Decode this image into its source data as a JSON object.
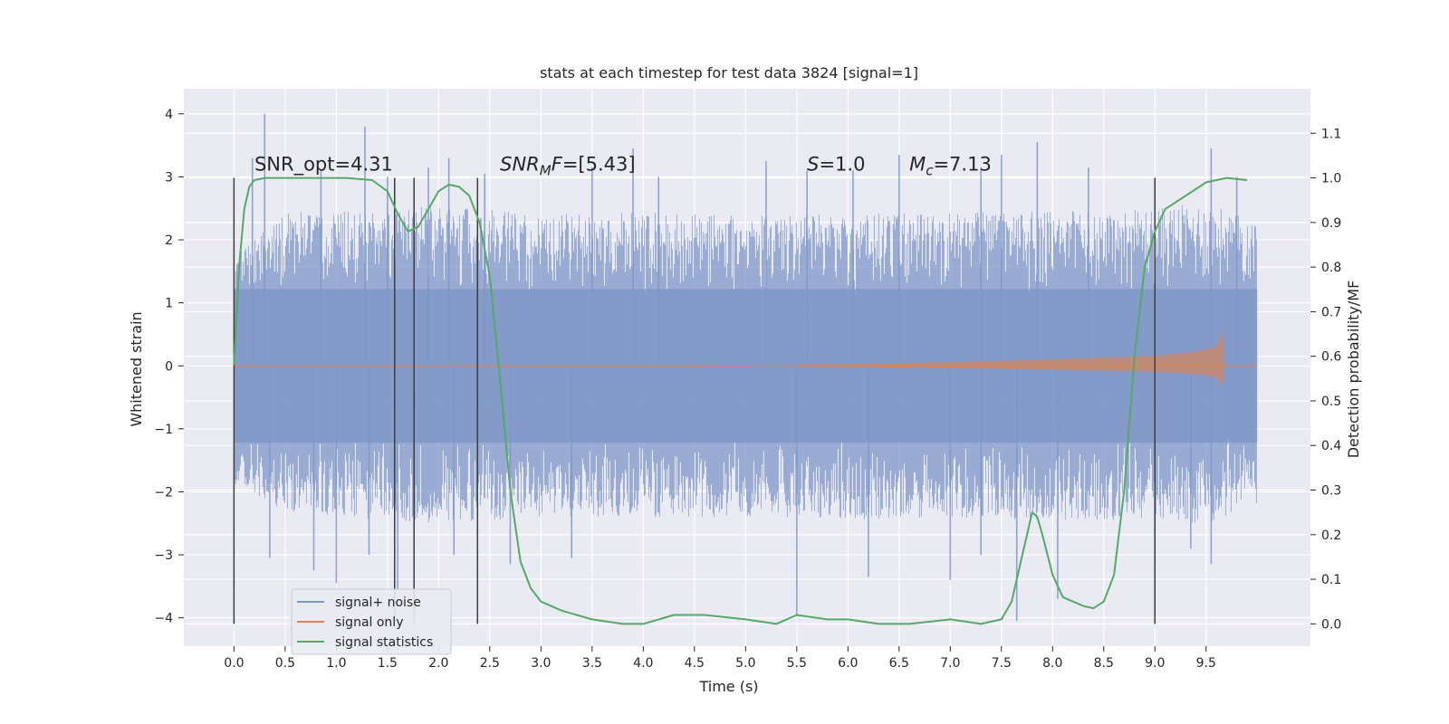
{
  "chart_data": {
    "type": "line",
    "title": "stats at each timestep for test data 3824 [signal=1]",
    "xlabel": "Time (s)",
    "ylabel": "Whitened strain",
    "y2label": "Detection probability/MF",
    "xlim": [
      -0.49,
      10.52
    ],
    "ylim": [
      -4.45,
      4.4
    ],
    "y2lim": [
      -0.05,
      1.2
    ],
    "x_ticks": [
      0.0,
      0.5,
      1.0,
      1.5,
      2.0,
      2.5,
      3.0,
      3.5,
      4.0,
      4.5,
      5.0,
      5.5,
      6.0,
      6.5,
      7.0,
      7.5,
      8.0,
      8.5,
      9.0,
      9.5
    ],
    "x_tick_labels": [
      "0.0",
      "0.5",
      "1.0",
      "1.5",
      "2.0",
      "2.5",
      "3.0",
      "3.5",
      "4.0",
      "4.5",
      "5.0",
      "5.5",
      "6.0",
      "6.5",
      "7.0",
      "7.5",
      "8.0",
      "8.5",
      "9.0",
      "9.5"
    ],
    "y_ticks": [
      -4,
      -3,
      -2,
      -1,
      0,
      1,
      2,
      3,
      4
    ],
    "y_tick_labels": [
      "−4",
      "−3",
      "−2",
      "−1",
      "0",
      "1",
      "2",
      "3",
      "4"
    ],
    "y2_ticks": [
      0.0,
      0.1,
      0.2,
      0.3,
      0.4,
      0.5,
      0.6,
      0.7,
      0.8,
      0.9,
      1.0,
      1.1
    ],
    "y2_tick_labels": [
      "0.0",
      "0.1",
      "0.2",
      "0.3",
      "0.4",
      "0.5",
      "0.6",
      "0.7",
      "0.8",
      "0.9",
      "1.0",
      "1.1"
    ],
    "grid": true,
    "legend_position": "bottom-left",
    "colors": {
      "noise": "#7d96c8",
      "signal": "#dd8452",
      "stats": "#55a868",
      "vline": "#3c3c3c",
      "plot_bg": "#eaeaf2",
      "grid": "#ffffff"
    },
    "series": [
      {
        "name": "signal+ noise",
        "axis": "left",
        "style": "dense-noise",
        "x_range": [
          0.0,
          10.0
        ],
        "envelope_upper": [
          [
            0.0,
            1.7
          ],
          [
            0.5,
            2.45
          ],
          [
            1.0,
            2.45
          ],
          [
            1.5,
            2.5
          ],
          [
            2.0,
            2.55
          ],
          [
            2.5,
            2.5
          ],
          [
            3.0,
            2.4
          ],
          [
            4.0,
            2.45
          ],
          [
            5.0,
            2.4
          ],
          [
            6.0,
            2.4
          ],
          [
            7.0,
            2.45
          ],
          [
            8.0,
            2.45
          ],
          [
            9.0,
            2.5
          ],
          [
            9.5,
            2.6
          ],
          [
            10.0,
            2.3
          ]
        ],
        "envelope_lower": [
          [
            0.0,
            -1.9
          ],
          [
            0.5,
            -2.3
          ],
          [
            1.0,
            -2.4
          ],
          [
            1.5,
            -2.45
          ],
          [
            2.0,
            -2.5
          ],
          [
            3.0,
            -2.4
          ],
          [
            4.0,
            -2.4
          ],
          [
            5.0,
            -2.4
          ],
          [
            6.0,
            -2.45
          ],
          [
            7.0,
            -2.4
          ],
          [
            8.0,
            -2.45
          ],
          [
            9.0,
            -2.45
          ],
          [
            9.5,
            -2.5
          ],
          [
            10.0,
            -2.2
          ]
        ],
        "spikes": [
          [
            0.3,
            4.0
          ],
          [
            0.18,
            3.3
          ],
          [
            0.85,
            3.1
          ],
          [
            1.28,
            3.8
          ],
          [
            1.5,
            3.0
          ],
          [
            1.9,
            3.15
          ],
          [
            2.1,
            3.3
          ],
          [
            2.45,
            3.05
          ],
          [
            3.9,
            3.45
          ],
          [
            3.5,
            3.15
          ],
          [
            4.15,
            3.0
          ],
          [
            5.2,
            3.25
          ],
          [
            5.6,
            3.1
          ],
          [
            6.05,
            3.1
          ],
          [
            6.5,
            3.35
          ],
          [
            7.3,
            3.15
          ],
          [
            7.5,
            3.35
          ],
          [
            7.85,
            3.55
          ],
          [
            8.35,
            3.15
          ],
          [
            9.55,
            3.45
          ],
          [
            9.8,
            3.0
          ],
          [
            0.35,
            -3.05
          ],
          [
            0.78,
            -3.25
          ],
          [
            1.0,
            -3.45
          ],
          [
            1.32,
            -3.0
          ],
          [
            1.6,
            -3.55
          ],
          [
            2.15,
            -3.0
          ],
          [
            2.7,
            -3.15
          ],
          [
            3.3,
            -3.05
          ],
          [
            5.5,
            -3.95
          ],
          [
            6.2,
            -3.35
          ],
          [
            7.0,
            -3.4
          ],
          [
            7.3,
            -3.0
          ],
          [
            7.65,
            -4.05
          ],
          [
            8.05,
            -3.7
          ],
          [
            9.0,
            -3.15
          ],
          [
            9.35,
            -2.9
          ],
          [
            9.55,
            -3.15
          ]
        ]
      },
      {
        "name": "signal only",
        "axis": "left",
        "style": "chirp",
        "x_range": [
          0.0,
          10.0
        ],
        "amplitude_points": [
          [
            0.0,
            0.004
          ],
          [
            5.0,
            0.01
          ],
          [
            6.0,
            0.03
          ],
          [
            7.0,
            0.06
          ],
          [
            8.0,
            0.1
          ],
          [
            9.0,
            0.16
          ],
          [
            9.4,
            0.22
          ],
          [
            9.6,
            0.3
          ],
          [
            9.66,
            0.55
          ],
          [
            9.68,
            0.0
          ],
          [
            10.0,
            0.0
          ]
        ]
      },
      {
        "name": "signal statistics",
        "axis": "right",
        "style": "line",
        "x": [
          0.0,
          0.05,
          0.1,
          0.15,
          0.2,
          0.3,
          0.5,
          0.8,
          1.1,
          1.35,
          1.5,
          1.6,
          1.7,
          1.8,
          1.9,
          2.0,
          2.1,
          2.2,
          2.3,
          2.4,
          2.5,
          2.6,
          2.7,
          2.8,
          2.9,
          3.0,
          3.2,
          3.5,
          3.8,
          4.0,
          4.3,
          4.6,
          5.0,
          5.3,
          5.5,
          5.8,
          6.0,
          6.3,
          6.6,
          7.0,
          7.3,
          7.5,
          7.6,
          7.7,
          7.8,
          7.85,
          7.9,
          8.0,
          8.1,
          8.3,
          8.4,
          8.5,
          8.6,
          8.7,
          8.8,
          8.9,
          9.0,
          9.1,
          9.3,
          9.5,
          9.7,
          9.9
        ],
        "values": [
          0.58,
          0.8,
          0.93,
          0.98,
          0.995,
          1.0,
          1.0,
          1.0,
          1.0,
          0.995,
          0.97,
          0.92,
          0.88,
          0.89,
          0.93,
          0.97,
          0.985,
          0.98,
          0.96,
          0.9,
          0.78,
          0.55,
          0.3,
          0.14,
          0.08,
          0.05,
          0.03,
          0.01,
          0.0,
          0.0,
          0.02,
          0.02,
          0.01,
          0.0,
          0.02,
          0.01,
          0.01,
          0.0,
          0.0,
          0.01,
          0.0,
          0.01,
          0.05,
          0.15,
          0.25,
          0.24,
          0.2,
          0.11,
          0.06,
          0.04,
          0.035,
          0.05,
          0.11,
          0.3,
          0.6,
          0.8,
          0.88,
          0.93,
          0.96,
          0.99,
          1.0,
          0.995
        ]
      }
    ],
    "vertical_lines": [
      0.0,
      1.57,
      1.76,
      2.38,
      9.0
    ],
    "annotations": [
      {
        "x": 0.2,
        "y": 3.1,
        "parts": [
          {
            "text": "SNR_opt=4.31"
          }
        ]
      },
      {
        "x": 2.6,
        "y": 3.1,
        "parts": [
          {
            "text": "SNR",
            "italic": true
          },
          {
            "text": "M",
            "italic": true,
            "sub": true
          },
          {
            "text": "F",
            "italic": true
          },
          {
            "text": "=[5.43]"
          }
        ]
      },
      {
        "x": 5.6,
        "y": 3.1,
        "parts": [
          {
            "text": "S",
            "italic": true
          },
          {
            "text": "=1.0"
          }
        ]
      },
      {
        "x": 6.6,
        "y": 3.1,
        "parts": [
          {
            "text": "M",
            "italic": true
          },
          {
            "text": "c",
            "italic": true,
            "sub": true
          },
          {
            "text": "=7.13"
          }
        ]
      }
    ],
    "legend": [
      "signal+ noise",
      "signal only",
      "signal statistics"
    ]
  }
}
